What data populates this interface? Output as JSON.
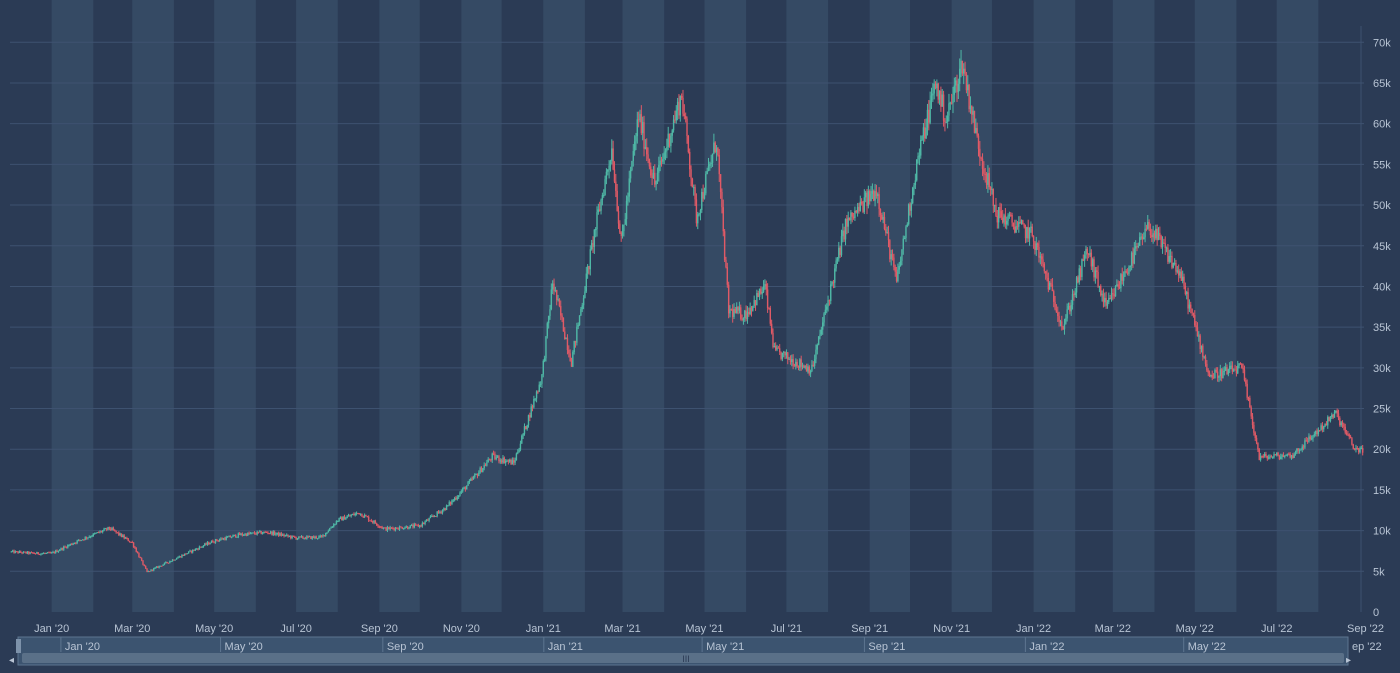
{
  "chart_data": {
    "type": "candlestick",
    "title": "",
    "xlabel": "",
    "ylabel": "",
    "ylim": [
      0,
      72000
    ],
    "y_ticks": [
      0,
      5000,
      10000,
      15000,
      20000,
      25000,
      30000,
      35000,
      40000,
      45000,
      50000,
      55000,
      60000,
      65000,
      70000
    ],
    "y_tick_labels": [
      "0",
      "5k",
      "10k",
      "15k",
      "20k",
      "25k",
      "30k",
      "35k",
      "40k",
      "45k",
      "50k",
      "55k",
      "60k",
      "65k",
      "70k"
    ],
    "y_axis_position": "right",
    "x_range": [
      "2019-12-01",
      "2022-09-01"
    ],
    "x_ticks": [
      "2020-01-01",
      "2020-03-01",
      "2020-05-01",
      "2020-07-01",
      "2020-09-01",
      "2020-11-01",
      "2021-01-01",
      "2021-03-01",
      "2021-05-01",
      "2021-07-01",
      "2021-09-01",
      "2021-11-01",
      "2022-01-01",
      "2022-03-01",
      "2022-05-01",
      "2022-07-01",
      "2022-09-01"
    ],
    "x_tick_labels": [
      "Jan '20",
      "Mar '20",
      "May '20",
      "Jul '20",
      "Sep '20",
      "Nov '20",
      "Jan '21",
      "Mar '21",
      "May '21",
      "Jul '21",
      "Sep '21",
      "Nov '21",
      "Jan '22",
      "Mar '22",
      "May '22",
      "Jul '22",
      "Sep '22"
    ],
    "alternating_month_bands": true,
    "grid": true,
    "price_path": [
      [
        "2019-12-01",
        7400
      ],
      [
        "2019-12-20",
        7200
      ],
      [
        "2020-01-01",
        7200
      ],
      [
        "2020-01-20",
        8700
      ],
      [
        "2020-02-13",
        10300
      ],
      [
        "2020-03-01",
        8500
      ],
      [
        "2020-03-12",
        4900
      ],
      [
        "2020-03-31",
        6400
      ],
      [
        "2020-04-30",
        8700
      ],
      [
        "2020-05-20",
        9500
      ],
      [
        "2020-06-10",
        9800
      ],
      [
        "2020-07-01",
        9100
      ],
      [
        "2020-07-20",
        9200
      ],
      [
        "2020-08-01",
        11300
      ],
      [
        "2020-08-17",
        12200
      ],
      [
        "2020-09-05",
        10200
      ],
      [
        "2020-10-01",
        10600
      ],
      [
        "2020-10-21",
        12900
      ],
      [
        "2020-11-05",
        15500
      ],
      [
        "2020-11-24",
        19100
      ],
      [
        "2020-12-10",
        18300
      ],
      [
        "2020-12-31",
        29000
      ],
      [
        "2021-01-08",
        40500
      ],
      [
        "2021-01-22",
        30800
      ],
      [
        "2021-02-08",
        46500
      ],
      [
        "2021-02-21",
        57000
      ],
      [
        "2021-02-28",
        45200
      ],
      [
        "2021-03-13",
        61000
      ],
      [
        "2021-03-25",
        52500
      ],
      [
        "2021-04-14",
        63500
      ],
      [
        "2021-04-25",
        48500
      ],
      [
        "2021-05-10",
        58000
      ],
      [
        "2021-05-19",
        37000
      ],
      [
        "2021-05-31",
        36500
      ],
      [
        "2021-06-15",
        40000
      ],
      [
        "2021-06-22",
        32000
      ],
      [
        "2021-07-20",
        29800
      ],
      [
        "2021-08-14",
        47500
      ],
      [
        "2021-09-06",
        52000
      ],
      [
        "2021-09-21",
        40500
      ],
      [
        "2021-10-06",
        55000
      ],
      [
        "2021-10-20",
        65000
      ],
      [
        "2021-10-28",
        60500
      ],
      [
        "2021-11-09",
        67500
      ],
      [
        "2021-11-20",
        58000
      ],
      [
        "2021-12-04",
        49000
      ],
      [
        "2021-12-31",
        46300
      ],
      [
        "2022-01-23",
        35000
      ],
      [
        "2022-02-10",
        44500
      ],
      [
        "2022-02-24",
        37300
      ],
      [
        "2022-03-28",
        47400
      ],
      [
        "2022-04-20",
        41500
      ],
      [
        "2022-05-12",
        29000
      ],
      [
        "2022-06-05",
        30000
      ],
      [
        "2022-06-18",
        19000
      ],
      [
        "2022-07-13",
        19300
      ],
      [
        "2022-08-14",
        24400
      ],
      [
        "2022-08-28",
        20000
      ],
      [
        "2022-09-03",
        20000
      ]
    ],
    "up_color": "#4fb8a6",
    "down_color": "#e05a66"
  },
  "navigator": {
    "tick_labels": [
      "Jan '20",
      "May '20",
      "Sep '20",
      "Jan '21",
      "May '21",
      "Sep '21",
      "Jan '22",
      "May '22",
      "ep '22"
    ],
    "tick_dates": [
      "2020-01-01",
      "2020-05-01",
      "2020-09-01",
      "2021-01-01",
      "2021-05-01",
      "2021-09-01",
      "2022-01-01",
      "2022-05-01",
      "2022-09-01"
    ],
    "handle_glyph": "III"
  },
  "colors": {
    "background": "#2b3b55",
    "band": "#354a64",
    "grid": "#3e5270",
    "axis_text": "#b8c4d4",
    "navigator_bg": "#3c5470",
    "navigator_track": "#5a7088"
  }
}
